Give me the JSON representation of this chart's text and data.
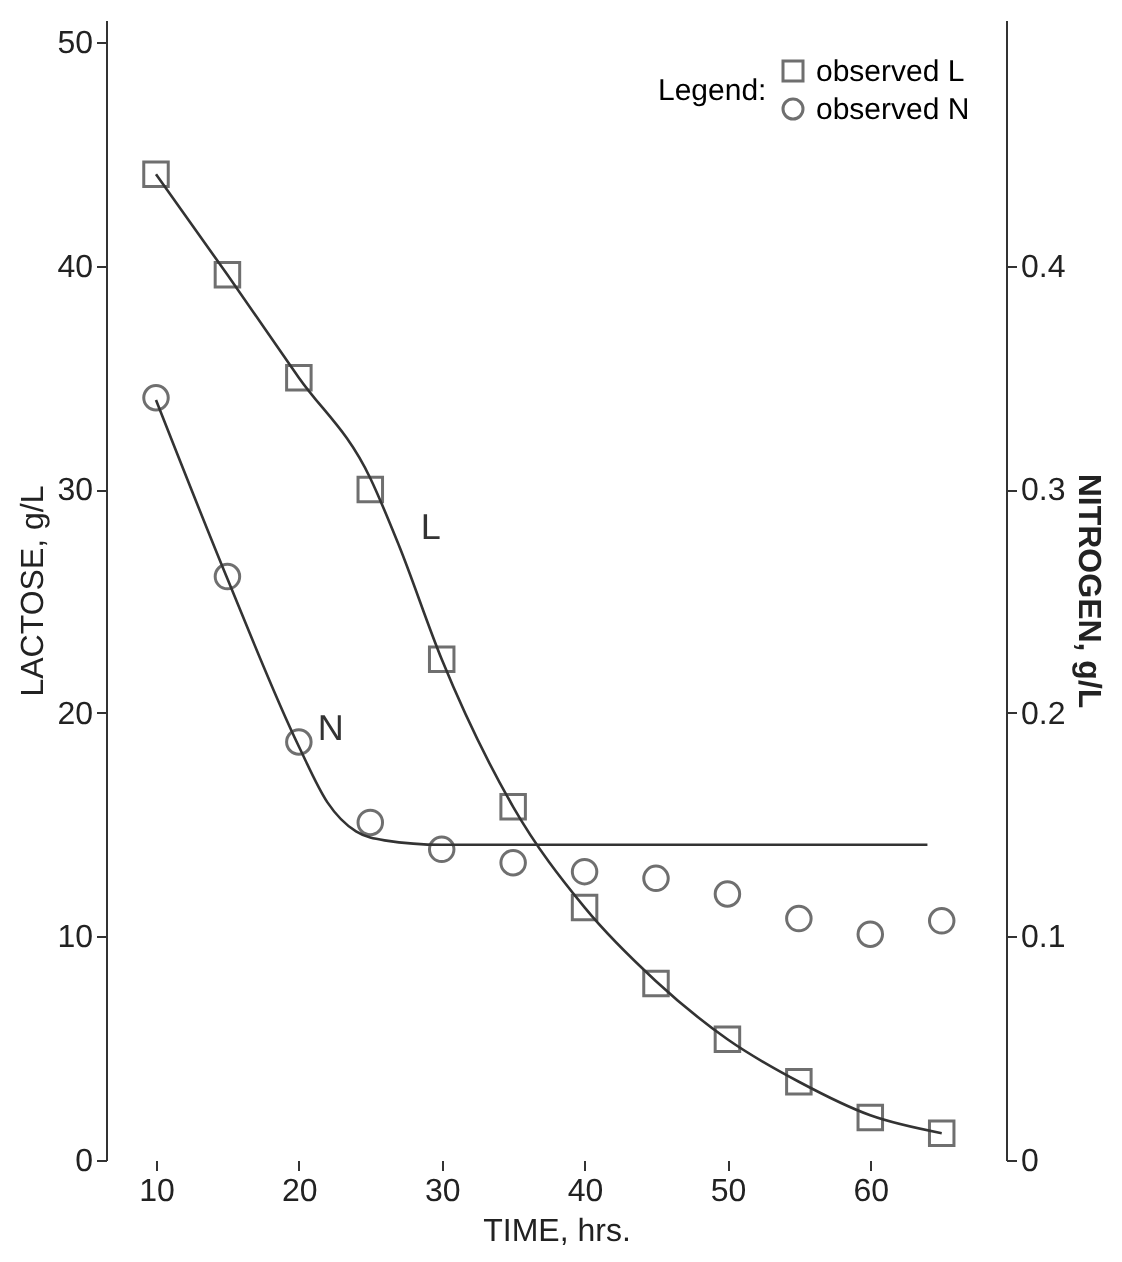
{
  "chart_data": {
    "type": "scatter",
    "xlabel": "TIME, hrs.",
    "ylabel": "LACTOSE, g/L",
    "y2label": "NITROGEN, g/L",
    "legend_title": "Legend:",
    "legend": "top right",
    "grid": false,
    "xlim": [
      6.5,
      69.5
    ],
    "xticks": [
      10,
      20,
      30,
      40,
      50,
      60
    ],
    "ylim": [
      0,
      51
    ],
    "yticks": [
      0,
      10,
      20,
      30,
      40,
      50
    ],
    "y2lim": [
      0,
      0.51
    ],
    "y2ticks": [
      0,
      0.1,
      0.2,
      0.3,
      0.4
    ],
    "series": [
      {
        "name": "observed L",
        "marker": "square",
        "color": "#333333",
        "x": [
          10,
          15,
          20,
          25,
          30,
          35,
          40,
          45,
          50,
          55,
          60,
          65
        ],
        "values": [
          44.1,
          39.6,
          35.0,
          30.0,
          22.4,
          15.8,
          11.3,
          7.9,
          5.4,
          3.5,
          1.9,
          1.2
        ]
      },
      {
        "type": "line",
        "line_style": "solid",
        "color": "#333333",
        "x": [
          10,
          15,
          20,
          25,
          27,
          30,
          35,
          40,
          45,
          50,
          55,
          60,
          65
        ],
        "values": [
          44.1,
          39.6,
          35.0,
          30.5,
          27.5,
          22.4,
          15.8,
          11.3,
          8.0,
          5.4,
          3.5,
          2.0,
          1.2
        ]
      },
      {
        "name": "observed N",
        "marker": "circle",
        "axis": "y2",
        "color": "#333333",
        "x": [
          10,
          15,
          20,
          25,
          30,
          35,
          40,
          45,
          50,
          55,
          60,
          65
        ],
        "values": [
          0.341,
          0.261,
          0.187,
          0.151,
          0.139,
          0.133,
          0.129,
          0.126,
          0.119,
          0.108,
          0.101,
          0.107
        ]
      },
      {
        "type": "line",
        "line_style": "solid",
        "axis": "y2",
        "color": "#333333",
        "x": [
          10,
          15,
          20,
          22,
          24,
          26,
          30,
          64
        ],
        "values": [
          0.34,
          0.26,
          0.185,
          0.16,
          0.147,
          0.143,
          0.141,
          0.141
        ]
      }
    ],
    "annotations": [
      "L",
      "N"
    ]
  }
}
